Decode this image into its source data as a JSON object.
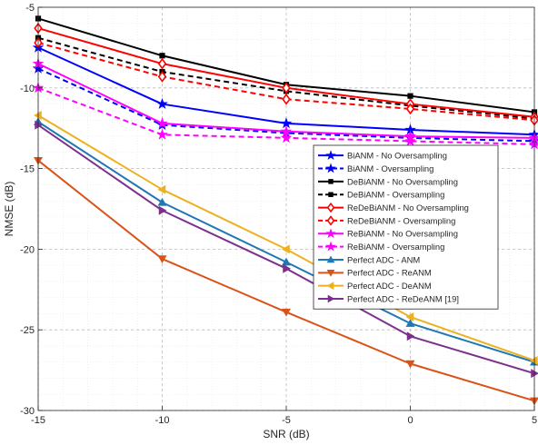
{
  "chart_data": {
    "type": "line",
    "title": "",
    "xlabel": "SNR (dB)",
    "ylabel": "NMSE (dB)",
    "xlim": [
      -15,
      5
    ],
    "ylim": [
      -30,
      -5
    ],
    "x": [
      -15,
      -10,
      -5,
      0,
      5
    ],
    "xticks": [
      -15,
      -10,
      -5,
      0,
      5
    ],
    "yticks": [
      -5,
      -10,
      -15,
      -20,
      -25,
      -30
    ],
    "xtick_labels": [
      "-15",
      "-10",
      "-5",
      "0",
      "5"
    ],
    "ytick_labels": [
      "-5",
      "-10",
      "-15",
      "-20",
      "-25",
      "-30"
    ],
    "grid": true,
    "legend_position": "center-right",
    "series": [
      {
        "name": "BiANM - No Oversampling",
        "color": "#0000ff",
        "dash": "solid",
        "marker": "star",
        "values": [
          -7.5,
          -11.0,
          -12.2,
          -12.6,
          -12.9
        ]
      },
      {
        "name": "BiANM - Oversampling",
        "color": "#0000ff",
        "dash": "dashed",
        "marker": "star",
        "values": [
          -8.8,
          -12.3,
          -12.8,
          -13.1,
          -13.3
        ]
      },
      {
        "name": "DeBiANM - No Oversampling",
        "color": "#000000",
        "dash": "solid",
        "marker": "square",
        "values": [
          -5.7,
          -8.0,
          -9.8,
          -10.5,
          -11.5
        ]
      },
      {
        "name": "DeBiANM - Oversampling",
        "color": "#000000",
        "dash": "dashed",
        "marker": "square",
        "values": [
          -6.9,
          -9.0,
          -10.2,
          -11.1,
          -11.9
        ]
      },
      {
        "name": "ReDeBiANM - No Oversampling",
        "color": "#ff0000",
        "dash": "solid",
        "marker": "diamond",
        "values": [
          -6.3,
          -8.5,
          -10.0,
          -11.0,
          -11.8
        ]
      },
      {
        "name": "ReDeBiANM - Oversampling",
        "color": "#ff0000",
        "dash": "dashed",
        "marker": "diamond",
        "values": [
          -7.2,
          -9.3,
          -10.7,
          -11.3,
          -12.0
        ]
      },
      {
        "name": "ReBiANM - No Oversampling",
        "color": "#ff00ff",
        "dash": "solid",
        "marker": "star",
        "values": [
          -8.5,
          -12.2,
          -12.7,
          -13.0,
          -13.1
        ]
      },
      {
        "name": "ReBiANM - Oversampling",
        "color": "#ff00ff",
        "dash": "dashed",
        "marker": "star",
        "values": [
          -10.0,
          -12.9,
          -13.1,
          -13.3,
          -13.5
        ]
      },
      {
        "name": "Perfect ADC - ANM",
        "color": "#1f77b4",
        "dash": "solid",
        "marker": "triangle-up",
        "values": [
          -12.1,
          -17.1,
          -20.8,
          -24.6,
          -27.0
        ]
      },
      {
        "name": "Perfect ADC - ReANM",
        "color": "#d95319",
        "dash": "solid",
        "marker": "triangle-down",
        "values": [
          -14.5,
          -20.6,
          -23.9,
          -27.1,
          -29.4
        ]
      },
      {
        "name": "Perfect ADC - DeANM",
        "color": "#edb120",
        "dash": "solid",
        "marker": "triangle-left",
        "values": [
          -11.7,
          -16.3,
          -20.0,
          -24.2,
          -26.9
        ]
      },
      {
        "name": "Perfect ADC - ReDeANM [19]",
        "color": "#7e2f8e",
        "dash": "solid",
        "marker": "triangle-right",
        "values": [
          -12.3,
          -17.6,
          -21.2,
          -25.4,
          -27.7
        ]
      }
    ]
  }
}
